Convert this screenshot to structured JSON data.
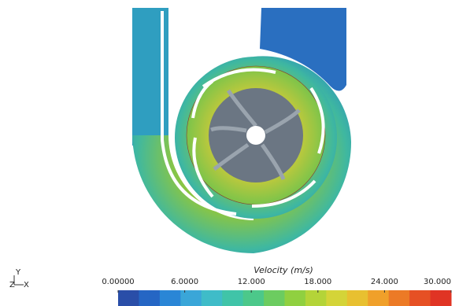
{
  "colorbar": {
    "title": "Velocity (m/s)",
    "range": [
      0,
      30
    ],
    "ticks": [
      {
        "value": 0,
        "label": "0.00000"
      },
      {
        "value": 6,
        "label": "6.0000"
      },
      {
        "value": 12,
        "label": "12.000"
      },
      {
        "value": 18,
        "label": "18.000"
      },
      {
        "value": 24,
        "label": "24.000"
      },
      {
        "value": 30,
        "label": "30.000"
      }
    ]
  },
  "triad": {
    "y": "Y",
    "z": "Z",
    "x": "X"
  }
}
